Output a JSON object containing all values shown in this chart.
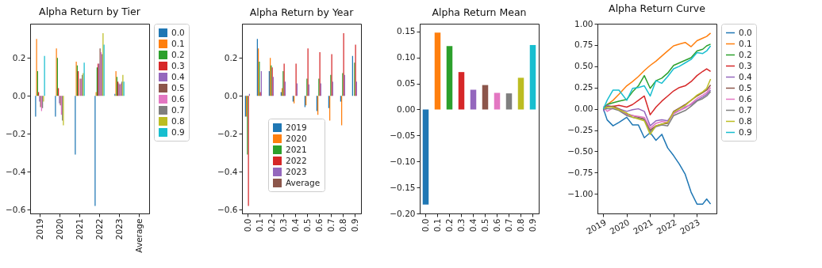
{
  "chart_data": [
    {
      "type": "bar",
      "title": "Alpha Return by Tier",
      "categories": [
        "2019",
        "2020",
        "2021",
        "2022",
        "2023",
        "Average"
      ],
      "ylim": [
        -0.62,
        0.38
      ],
      "yticks": [
        {
          "value": -0.6,
          "label": "−0.6"
        },
        {
          "value": -0.4,
          "label": "−0.4"
        },
        {
          "value": -0.2,
          "label": "−0.2"
        },
        {
          "value": 0,
          "label": "0.0"
        },
        {
          "value": 0.2,
          "label": "0.2"
        }
      ],
      "grid": false,
      "legend": "top right",
      "series": [
        {
          "name": "0.0",
          "color": "#1f77b4",
          "values": [
            -0.11,
            -0.11,
            -0.31,
            -0.58,
            0.01,
            null
          ]
        },
        {
          "name": "0.1",
          "color": "#ff7f0e",
          "values": [
            0.3,
            0.25,
            0.18,
            0.02,
            0.13,
            null
          ]
        },
        {
          "name": "0.2",
          "color": "#2ca02c",
          "values": [
            0.13,
            0.2,
            0.16,
            0.15,
            0.1,
            null
          ]
        },
        {
          "name": "0.3",
          "color": "#d62728",
          "values": [
            0.02,
            0.04,
            0.13,
            0.17,
            0.075,
            null
          ]
        },
        {
          "name": "0.4",
          "color": "#9467bd",
          "values": [
            -0.03,
            -0.04,
            0.0,
            0.17,
            0.065,
            null
          ]
        },
        {
          "name": "0.5",
          "color": "#8c564b",
          "values": [
            -0.06,
            -0.05,
            0.09,
            0.25,
            0.06,
            null
          ]
        },
        {
          "name": "0.6",
          "color": "#e377c2",
          "values": [
            -0.08,
            -0.1,
            0.09,
            0.23,
            0.065,
            null
          ]
        },
        {
          "name": "0.7",
          "color": "#7f7f7f",
          "values": [
            -0.065,
            -0.13,
            0.11,
            0.22,
            0.075,
            null
          ]
        },
        {
          "name": "0.8",
          "color": "#bcbd22",
          "values": [
            -0.03,
            -0.155,
            0.12,
            0.33,
            0.11,
            null
          ]
        },
        {
          "name": "0.9",
          "color": "#17becf",
          "values": [
            0.21,
            null,
            0.175,
            0.27,
            0.075,
            null
          ]
        }
      ]
    },
    {
      "type": "bar",
      "title": "Alpha Return by Year",
      "categories": [
        "0.0",
        "0.1",
        "0.2",
        "0.3",
        "0.4",
        "0.5",
        "0.6",
        "0.7",
        "0.8",
        "0.9"
      ],
      "ylim": [
        -0.62,
        0.38
      ],
      "yticks": [
        {
          "value": -0.6,
          "label": "−0.6"
        },
        {
          "value": -0.4,
          "label": "−0.4"
        },
        {
          "value": -0.2,
          "label": "−0.2"
        },
        {
          "value": 0,
          "label": "0.0"
        },
        {
          "value": 0.2,
          "label": "0.2"
        }
      ],
      "grid": false,
      "legend": "bottom",
      "series": [
        {
          "name": "2019",
          "color": "#1f77b4",
          "values": [
            -0.11,
            0.3,
            0.13,
            0.02,
            -0.03,
            -0.06,
            -0.08,
            -0.065,
            -0.03,
            0.21
          ]
        },
        {
          "name": "2020",
          "color": "#ff7f0e",
          "values": [
            -0.11,
            0.25,
            0.2,
            0.04,
            -0.04,
            -0.05,
            -0.1,
            -0.13,
            -0.155,
            null
          ]
        },
        {
          "name": "2021",
          "color": "#2ca02c",
          "values": [
            -0.31,
            0.18,
            0.16,
            0.13,
            0.0,
            0.09,
            0.09,
            0.11,
            0.12,
            0.175
          ]
        },
        {
          "name": "2022",
          "color": "#d62728",
          "values": [
            -0.58,
            0.02,
            0.15,
            0.17,
            0.17,
            0.25,
            0.23,
            0.22,
            0.33,
            0.27
          ]
        },
        {
          "name": "2023",
          "color": "#9467bd",
          "values": [
            0.01,
            0.13,
            0.1,
            0.075,
            0.065,
            0.06,
            0.065,
            0.075,
            0.11,
            0.075
          ]
        },
        {
          "name": "Average",
          "color": "#8c564b",
          "values": [
            null,
            null,
            null,
            null,
            null,
            null,
            null,
            null,
            null,
            null
          ]
        }
      ]
    },
    {
      "type": "bar",
      "title": "Alpha Return Mean",
      "categories": [
        "0.0",
        "0.1",
        "0.2",
        "0.3",
        "0.4",
        "0.5",
        "0.6",
        "0.7",
        "0.8",
        "0.9"
      ],
      "values": [
        -0.183,
        0.148,
        0.122,
        0.072,
        0.038,
        0.047,
        0.032,
        0.031,
        0.061,
        0.124
      ],
      "colors": [
        "#1f77b4",
        "#ff7f0e",
        "#2ca02c",
        "#d62728",
        "#9467bd",
        "#8c564b",
        "#e377c2",
        "#7f7f7f",
        "#bcbd22",
        "#17becf"
      ],
      "ylim": [
        -0.2,
        0.165
      ],
      "yticks": [
        {
          "value": -0.2,
          "label": "−0.20"
        },
        {
          "value": -0.15,
          "label": "−0.15"
        },
        {
          "value": -0.1,
          "label": "−0.10"
        },
        {
          "value": -0.05,
          "label": "−0.05"
        },
        {
          "value": 0,
          "label": "0.00"
        },
        {
          "value": 0.05,
          "label": "0.05"
        },
        {
          "value": 0.1,
          "label": "0.10"
        },
        {
          "value": 0.15,
          "label": "0.15"
        }
      ],
      "grid": false
    },
    {
      "type": "line",
      "title": "Alpha Return Curve",
      "x": [
        "2019-01-02",
        "2019-03",
        "2019-06",
        "2019-09",
        "2020-01",
        "2020-04",
        "2020-07",
        "2020-10",
        "2021-01",
        "2021-04",
        "2021-07",
        "2021-10",
        "2022-01",
        "2022-04",
        "2022-07",
        "2022-10",
        "2023-01",
        "2023-04",
        "2023-06",
        "2023-08"
      ],
      "xlim": [
        "2018-10",
        "2023-11"
      ],
      "xticks": [
        "2019",
        "2020",
        "2021",
        "2022",
        "2023"
      ],
      "ylim": [
        -1.23,
        1.0
      ],
      "yticks": [
        {
          "value": -1,
          "label": "−1.00"
        },
        {
          "value": -0.75,
          "label": "−0.75"
        },
        {
          "value": -0.5,
          "label": "−0.50"
        },
        {
          "value": -0.25,
          "label": "−0.25"
        },
        {
          "value": 0,
          "label": "0.00"
        },
        {
          "value": 0.25,
          "label": "0.25"
        },
        {
          "value": 0.5,
          "label": "0.50"
        },
        {
          "value": 0.75,
          "label": "0.75"
        },
        {
          "value": 1,
          "label": "1.00"
        }
      ],
      "grid": false,
      "legend": "right",
      "marker": "none",
      "line_style": "solid",
      "series": [
        {
          "name": "0.0",
          "color": "#1f77b4",
          "values": [
            0,
            -0.13,
            -0.2,
            -0.16,
            -0.1,
            -0.19,
            -0.19,
            -0.34,
            -0.28,
            -0.37,
            -0.3,
            -0.46,
            -0.55,
            -0.65,
            -0.77,
            -0.98,
            -1.12,
            -1.12,
            -1.06,
            -1.12
          ]
        },
        {
          "name": "0.1",
          "color": "#ff7f0e",
          "values": [
            0,
            0.05,
            0.1,
            0.17,
            0.27,
            0.32,
            0.38,
            0.45,
            0.51,
            0.56,
            0.62,
            0.68,
            0.74,
            0.76,
            0.78,
            0.73,
            0.8,
            0.83,
            0.85,
            0.89
          ]
        },
        {
          "name": "0.2",
          "color": "#2ca02c",
          "values": [
            0,
            0.05,
            0.07,
            0.09,
            0.11,
            0.2,
            0.27,
            0.39,
            0.24,
            0.33,
            0.36,
            0.42,
            0.51,
            0.54,
            0.57,
            0.6,
            0.68,
            0.7,
            0.74,
            0.76
          ]
        },
        {
          "name": "0.3",
          "color": "#d62728",
          "values": [
            0,
            0.03,
            0.03,
            0.04,
            0.02,
            0.05,
            0.1,
            0.15,
            -0.07,
            0.02,
            0.09,
            0.15,
            0.21,
            0.25,
            0.27,
            0.32,
            0.39,
            0.44,
            0.47,
            0.44
          ]
        },
        {
          "name": "0.4",
          "color": "#9467bd",
          "values": [
            -0.03,
            0.04,
            0.02,
            0.0,
            -0.03,
            -0.01,
            0.0,
            -0.03,
            -0.2,
            -0.14,
            -0.13,
            -0.14,
            -0.05,
            -0.02,
            0.02,
            0.05,
            0.1,
            0.14,
            0.17,
            0.22
          ]
        },
        {
          "name": "0.5",
          "color": "#8c564b",
          "values": [
            0,
            0.02,
            0.03,
            0.0,
            -0.06,
            -0.08,
            -0.1,
            -0.12,
            -0.25,
            -0.2,
            -0.18,
            -0.17,
            -0.03,
            0.01,
            0.05,
            0.1,
            0.15,
            0.19,
            0.22,
            0.28
          ]
        },
        {
          "name": "0.6",
          "color": "#e377c2",
          "values": [
            0.03,
            -0.03,
            0.01,
            -0.01,
            -0.07,
            -0.08,
            -0.09,
            -0.1,
            -0.23,
            -0.17,
            -0.15,
            -0.16,
            -0.06,
            -0.02,
            0.01,
            0.06,
            0.12,
            0.16,
            0.19,
            0.25
          ]
        },
        {
          "name": "0.7",
          "color": "#7f7f7f",
          "values": [
            0,
            0.0,
            0.0,
            -0.02,
            -0.08,
            -0.1,
            -0.11,
            -0.13,
            -0.27,
            -0.21,
            -0.19,
            -0.2,
            -0.08,
            -0.05,
            -0.02,
            0.03,
            0.09,
            0.12,
            0.15,
            0.2
          ]
        },
        {
          "name": "0.8",
          "color": "#bcbd22",
          "values": [
            0,
            0.02,
            0.02,
            -0.01,
            -0.05,
            -0.1,
            -0.12,
            -0.14,
            -0.3,
            -0.2,
            -0.18,
            -0.16,
            -0.04,
            0.0,
            0.04,
            0.1,
            0.16,
            0.2,
            0.24,
            0.35
          ]
        },
        {
          "name": "0.9",
          "color": "#17becf",
          "values": [
            0,
            0.1,
            0.22,
            0.22,
            0.1,
            0.24,
            0.25,
            0.27,
            0.15,
            0.33,
            0.3,
            0.38,
            0.47,
            0.5,
            0.54,
            0.58,
            0.66,
            0.65,
            0.68,
            0.74
          ]
        }
      ]
    }
  ]
}
